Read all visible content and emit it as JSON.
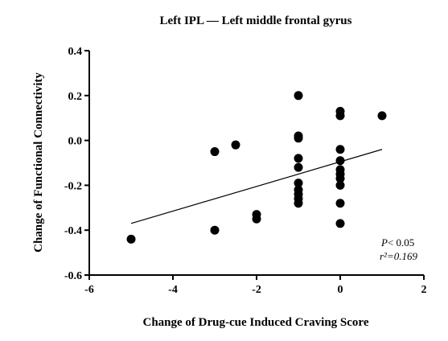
{
  "chart_data": {
    "type": "scatter",
    "title": "Left IPL — Left middle frontal gyrus",
    "xlabel": "Change of Drug-cue Induced Craving Score",
    "ylabel": "Change of Functional Connectivity",
    "xlim": [
      -6,
      2
    ],
    "ylim": [
      -0.6,
      0.4
    ],
    "xticks": [
      "-6",
      "-4",
      "-2",
      "0",
      "2"
    ],
    "yticks": [
      "0.4",
      "0.2",
      "0.0",
      "-0.2",
      "-0.4",
      "-0.6"
    ],
    "grid": false,
    "series": [
      {
        "points": [
          {
            "x": -5,
            "y": -0.44
          },
          {
            "x": -3,
            "y": -0.05
          },
          {
            "x": -3,
            "y": -0.4
          },
          {
            "x": -2.5,
            "y": -0.02
          },
          {
            "x": -2,
            "y": -0.33
          },
          {
            "x": -2,
            "y": -0.35
          },
          {
            "x": -1,
            "y": 0.2
          },
          {
            "x": -1,
            "y": 0.02
          },
          {
            "x": -1,
            "y": 0.01
          },
          {
            "x": -1,
            "y": -0.08
          },
          {
            "x": -1,
            "y": -0.12
          },
          {
            "x": -1,
            "y": -0.19
          },
          {
            "x": -1,
            "y": -0.22
          },
          {
            "x": -1,
            "y": -0.24
          },
          {
            "x": -1,
            "y": -0.26
          },
          {
            "x": -1,
            "y": -0.28
          },
          {
            "x": 0,
            "y": 0.13
          },
          {
            "x": 0,
            "y": 0.11
          },
          {
            "x": 0,
            "y": -0.04
          },
          {
            "x": 0,
            "y": -0.09
          },
          {
            "x": 0,
            "y": -0.13
          },
          {
            "x": 0,
            "y": -0.15
          },
          {
            "x": 0,
            "y": -0.17
          },
          {
            "x": 0,
            "y": -0.2
          },
          {
            "x": 0,
            "y": -0.28
          },
          {
            "x": 0,
            "y": -0.37
          },
          {
            "x": 1,
            "y": 0.11
          }
        ]
      }
    ],
    "fit_line": {
      "x": [
        -5,
        1
      ],
      "y": [
        -0.37,
        -0.04
      ]
    },
    "annotation": {
      "p_symbol": "P",
      "p_text": "< 0.05",
      "r2_text": "r²=0.169"
    }
  }
}
